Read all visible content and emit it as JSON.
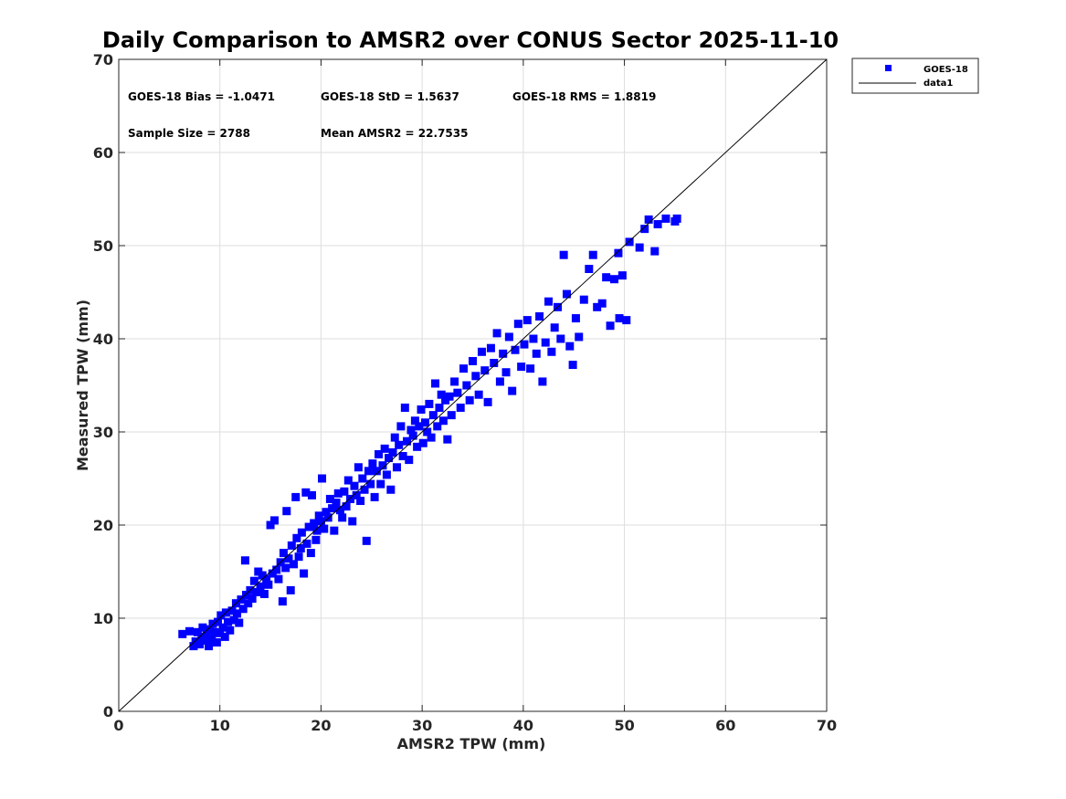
{
  "chart_data": {
    "type": "scatter",
    "title": "Daily Comparison to AMSR2 over CONUS Sector 2025-11-10",
    "xlabel": "AMSR2 TPW (mm)",
    "ylabel": "Measured TPW (mm)",
    "xlim": [
      0,
      70
    ],
    "ylim": [
      0,
      70
    ],
    "xticks": [
      0,
      10,
      20,
      30,
      40,
      50,
      60,
      70
    ],
    "yticks": [
      0,
      10,
      20,
      30,
      40,
      50,
      60,
      70
    ],
    "grid": true,
    "legend_position": "outside-top-right",
    "stats": {
      "bias": "GOES-18 Bias = -1.0471",
      "std": "GOES-18 StD = 1.5637",
      "rms": "GOES-18 RMS = 1.8819",
      "sample_size": "Sample Size = 2788",
      "mean": "Mean AMSR2 = 22.7535"
    },
    "series": [
      {
        "name": "GOES-18",
        "marker": "square",
        "color": "#0000ff",
        "points": [
          [
            6.3,
            8.3
          ],
          [
            7.0,
            8.6
          ],
          [
            7.4,
            7.0
          ],
          [
            7.6,
            7.5
          ],
          [
            7.8,
            8.5
          ],
          [
            8.0,
            7.2
          ],
          [
            8.2,
            8.0
          ],
          [
            8.3,
            9.0
          ],
          [
            8.5,
            7.6
          ],
          [
            8.7,
            8.3
          ],
          [
            8.9,
            7.0
          ],
          [
            9.0,
            8.8
          ],
          [
            9.2,
            7.8
          ],
          [
            9.3,
            9.4
          ],
          [
            9.5,
            8.5
          ],
          [
            9.7,
            7.4
          ],
          [
            9.8,
            9.6
          ],
          [
            10.0,
            8.4
          ],
          [
            10.1,
            10.3
          ],
          [
            10.3,
            9.0
          ],
          [
            10.5,
            8.0
          ],
          [
            10.6,
            10.6
          ],
          [
            10.8,
            9.6
          ],
          [
            11.0,
            8.7
          ],
          [
            11.2,
            10.8
          ],
          [
            11.4,
            9.8
          ],
          [
            11.6,
            11.6
          ],
          [
            11.7,
            10.5
          ],
          [
            11.9,
            9.5
          ],
          [
            12.1,
            12.0
          ],
          [
            12.3,
            11.0
          ],
          [
            12.5,
            16.2
          ],
          [
            12.6,
            12.5
          ],
          [
            12.8,
            11.6
          ],
          [
            13.0,
            13.0
          ],
          [
            13.2,
            12.1
          ],
          [
            13.4,
            14.0
          ],
          [
            13.6,
            12.8
          ],
          [
            13.8,
            15.0
          ],
          [
            14.0,
            13.4
          ],
          [
            14.2,
            14.6
          ],
          [
            14.4,
            12.6
          ],
          [
            14.6,
            14.2
          ],
          [
            14.8,
            13.6
          ],
          [
            15.0,
            20.0
          ],
          [
            15.2,
            14.8
          ],
          [
            15.4,
            20.5
          ],
          [
            15.6,
            15.2
          ],
          [
            15.8,
            14.2
          ],
          [
            16.0,
            16.0
          ],
          [
            16.2,
            11.8
          ],
          [
            16.3,
            17.0
          ],
          [
            16.5,
            15.4
          ],
          [
            16.6,
            21.5
          ],
          [
            16.8,
            16.4
          ],
          [
            17.0,
            13.0
          ],
          [
            17.1,
            17.8
          ],
          [
            17.3,
            15.8
          ],
          [
            17.5,
            23.0
          ],
          [
            17.6,
            18.6
          ],
          [
            17.8,
            16.6
          ],
          [
            18.0,
            17.5
          ],
          [
            18.1,
            19.2
          ],
          [
            18.3,
            14.8
          ],
          [
            18.5,
            23.5
          ],
          [
            18.6,
            18.0
          ],
          [
            18.8,
            19.8
          ],
          [
            19.0,
            17.0
          ],
          [
            19.1,
            23.2
          ],
          [
            19.3,
            20.2
          ],
          [
            19.5,
            18.4
          ],
          [
            19.6,
            19.4
          ],
          [
            19.8,
            21.0
          ],
          [
            20.0,
            20.4
          ],
          [
            20.1,
            25.0
          ],
          [
            20.3,
            19.6
          ],
          [
            20.5,
            21.4
          ],
          [
            20.7,
            20.8
          ],
          [
            20.9,
            22.8
          ],
          [
            21.1,
            21.8
          ],
          [
            21.3,
            19.4
          ],
          [
            21.5,
            22.4
          ],
          [
            21.7,
            23.4
          ],
          [
            21.9,
            21.6
          ],
          [
            22.1,
            20.8
          ],
          [
            22.3,
            23.6
          ],
          [
            22.5,
            22.0
          ],
          [
            22.7,
            24.8
          ],
          [
            22.9,
            22.8
          ],
          [
            23.1,
            20.4
          ],
          [
            23.3,
            24.2
          ],
          [
            23.5,
            23.2
          ],
          [
            23.7,
            26.2
          ],
          [
            23.9,
            22.6
          ],
          [
            24.1,
            25.0
          ],
          [
            24.3,
            23.8
          ],
          [
            24.5,
            18.3
          ],
          [
            24.7,
            25.8
          ],
          [
            24.9,
            24.4
          ],
          [
            25.1,
            26.6
          ],
          [
            25.3,
            23.0
          ],
          [
            25.5,
            25.8
          ],
          [
            25.7,
            27.6
          ],
          [
            25.9,
            24.4
          ],
          [
            26.1,
            26.4
          ],
          [
            26.3,
            28.2
          ],
          [
            26.5,
            25.4
          ],
          [
            26.7,
            27.2
          ],
          [
            26.9,
            23.8
          ],
          [
            27.1,
            27.8
          ],
          [
            27.3,
            29.4
          ],
          [
            27.5,
            26.2
          ],
          [
            27.7,
            28.6
          ],
          [
            27.9,
            30.6
          ],
          [
            28.1,
            27.4
          ],
          [
            28.3,
            32.6
          ],
          [
            28.5,
            29.0
          ],
          [
            28.7,
            27.0
          ],
          [
            28.9,
            30.2
          ],
          [
            29.1,
            29.6
          ],
          [
            29.3,
            31.2
          ],
          [
            29.5,
            28.4
          ],
          [
            29.7,
            30.6
          ],
          [
            29.9,
            32.4
          ],
          [
            30.1,
            28.8
          ],
          [
            30.3,
            31.0
          ],
          [
            30.5,
            30.0
          ],
          [
            30.7,
            33.0
          ],
          [
            30.9,
            29.4
          ],
          [
            31.1,
            31.8
          ],
          [
            31.3,
            35.2
          ],
          [
            31.5,
            30.6
          ],
          [
            31.7,
            32.6
          ],
          [
            31.9,
            34.0
          ],
          [
            32.1,
            31.2
          ],
          [
            32.3,
            33.4
          ],
          [
            32.5,
            29.2
          ],
          [
            32.7,
            33.8
          ],
          [
            32.9,
            31.8
          ],
          [
            33.2,
            35.4
          ],
          [
            33.5,
            34.2
          ],
          [
            33.8,
            32.6
          ],
          [
            34.1,
            36.8
          ],
          [
            34.4,
            35.0
          ],
          [
            34.7,
            33.4
          ],
          [
            35.0,
            37.6
          ],
          [
            35.3,
            36.0
          ],
          [
            35.6,
            34.0
          ],
          [
            35.9,
            38.6
          ],
          [
            36.2,
            36.6
          ],
          [
            36.5,
            33.2
          ],
          [
            36.8,
            39.0
          ],
          [
            37.1,
            37.4
          ],
          [
            37.4,
            40.6
          ],
          [
            37.7,
            35.4
          ],
          [
            38.0,
            38.4
          ],
          [
            38.3,
            36.4
          ],
          [
            38.6,
            40.2
          ],
          [
            38.9,
            34.4
          ],
          [
            39.2,
            38.8
          ],
          [
            39.5,
            41.6
          ],
          [
            39.8,
            37.0
          ],
          [
            40.1,
            39.4
          ],
          [
            40.4,
            42.0
          ],
          [
            40.7,
            36.8
          ],
          [
            41.0,
            40.0
          ],
          [
            41.3,
            38.4
          ],
          [
            41.6,
            42.4
          ],
          [
            41.9,
            35.4
          ],
          [
            42.2,
            39.6
          ],
          [
            42.5,
            44.0
          ],
          [
            42.8,
            38.6
          ],
          [
            43.1,
            41.2
          ],
          [
            43.4,
            43.4
          ],
          [
            43.7,
            40.0
          ],
          [
            44.0,
            49.0
          ],
          [
            44.3,
            44.8
          ],
          [
            44.6,
            39.2
          ],
          [
            44.9,
            37.2
          ],
          [
            45.2,
            42.2
          ],
          [
            45.5,
            40.2
          ],
          [
            46.0,
            44.2
          ],
          [
            46.5,
            47.5
          ],
          [
            46.9,
            49.0
          ],
          [
            47.3,
            43.4
          ],
          [
            47.8,
            43.8
          ],
          [
            48.2,
            46.6
          ],
          [
            48.6,
            41.4
          ],
          [
            49.0,
            46.4
          ],
          [
            49.4,
            49.2
          ],
          [
            49.5,
            42.2
          ],
          [
            49.8,
            46.8
          ],
          [
            50.2,
            42.0
          ],
          [
            50.5,
            50.4
          ],
          [
            51.5,
            49.8
          ],
          [
            52.0,
            51.8
          ],
          [
            52.4,
            52.8
          ],
          [
            53.0,
            49.4
          ],
          [
            53.3,
            52.3
          ],
          [
            54.1,
            52.9
          ],
          [
            55.0,
            52.6
          ],
          [
            55.2,
            52.9
          ]
        ]
      },
      {
        "name": "data1",
        "type": "line",
        "color": "#000000",
        "x": [
          0,
          70
        ],
        "y": [
          0,
          70
        ]
      }
    ]
  }
}
